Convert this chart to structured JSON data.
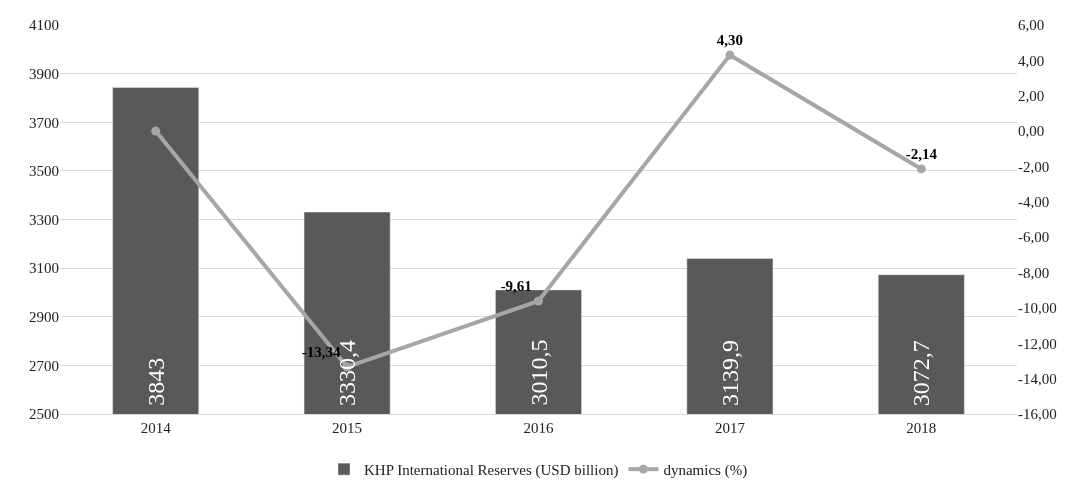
{
  "chart_data": {
    "type": "bar",
    "categories": [
      "2014",
      "2015",
      "2016",
      "2017",
      "2018"
    ],
    "series": [
      {
        "name": "KHP International Reserves (USD billion)",
        "color": "#595959",
        "values": [
          3843,
          3330.4,
          3010.5,
          3139.9,
          3072.7
        ],
        "value_labels": [
          "3843",
          "3330,4",
          "3010,5",
          "3139,9",
          "3072,7"
        ]
      },
      {
        "name": "dynamics (%)",
        "type": "line",
        "axis": "y2",
        "color": "#a6a6a6",
        "marker": "circle",
        "values": [
          0,
          -13.34,
          -9.61,
          4.3,
          -2.14
        ],
        "value_labels": [
          null,
          "-13,34",
          "-9,61",
          "4,30",
          "-2,14"
        ]
      }
    ],
    "ylim": [
      2500,
      4100
    ],
    "yticks": [
      2500,
      2700,
      2900,
      3100,
      3300,
      3500,
      3700,
      3900,
      4100
    ],
    "y2lim": [
      -16,
      6
    ],
    "y2ticks": [
      {
        "value": -16,
        "label": "-16,00"
      },
      {
        "value": -14,
        "label": "-14,00"
      },
      {
        "value": -12,
        "label": "-12,00"
      },
      {
        "value": -10,
        "label": "-10,00"
      },
      {
        "value": -8,
        "label": "-8,00"
      },
      {
        "value": -6,
        "label": "-6,00"
      },
      {
        "value": -4,
        "label": "-4,00"
      },
      {
        "value": -2,
        "label": "-2,00"
      },
      {
        "value": 0,
        "label": "0,00"
      },
      {
        "value": 2,
        "label": "2,00"
      },
      {
        "value": 4,
        "label": "4,00"
      },
      {
        "value": 6,
        "label": "6,00"
      }
    ],
    "grid": "y",
    "legend": "bottom"
  }
}
